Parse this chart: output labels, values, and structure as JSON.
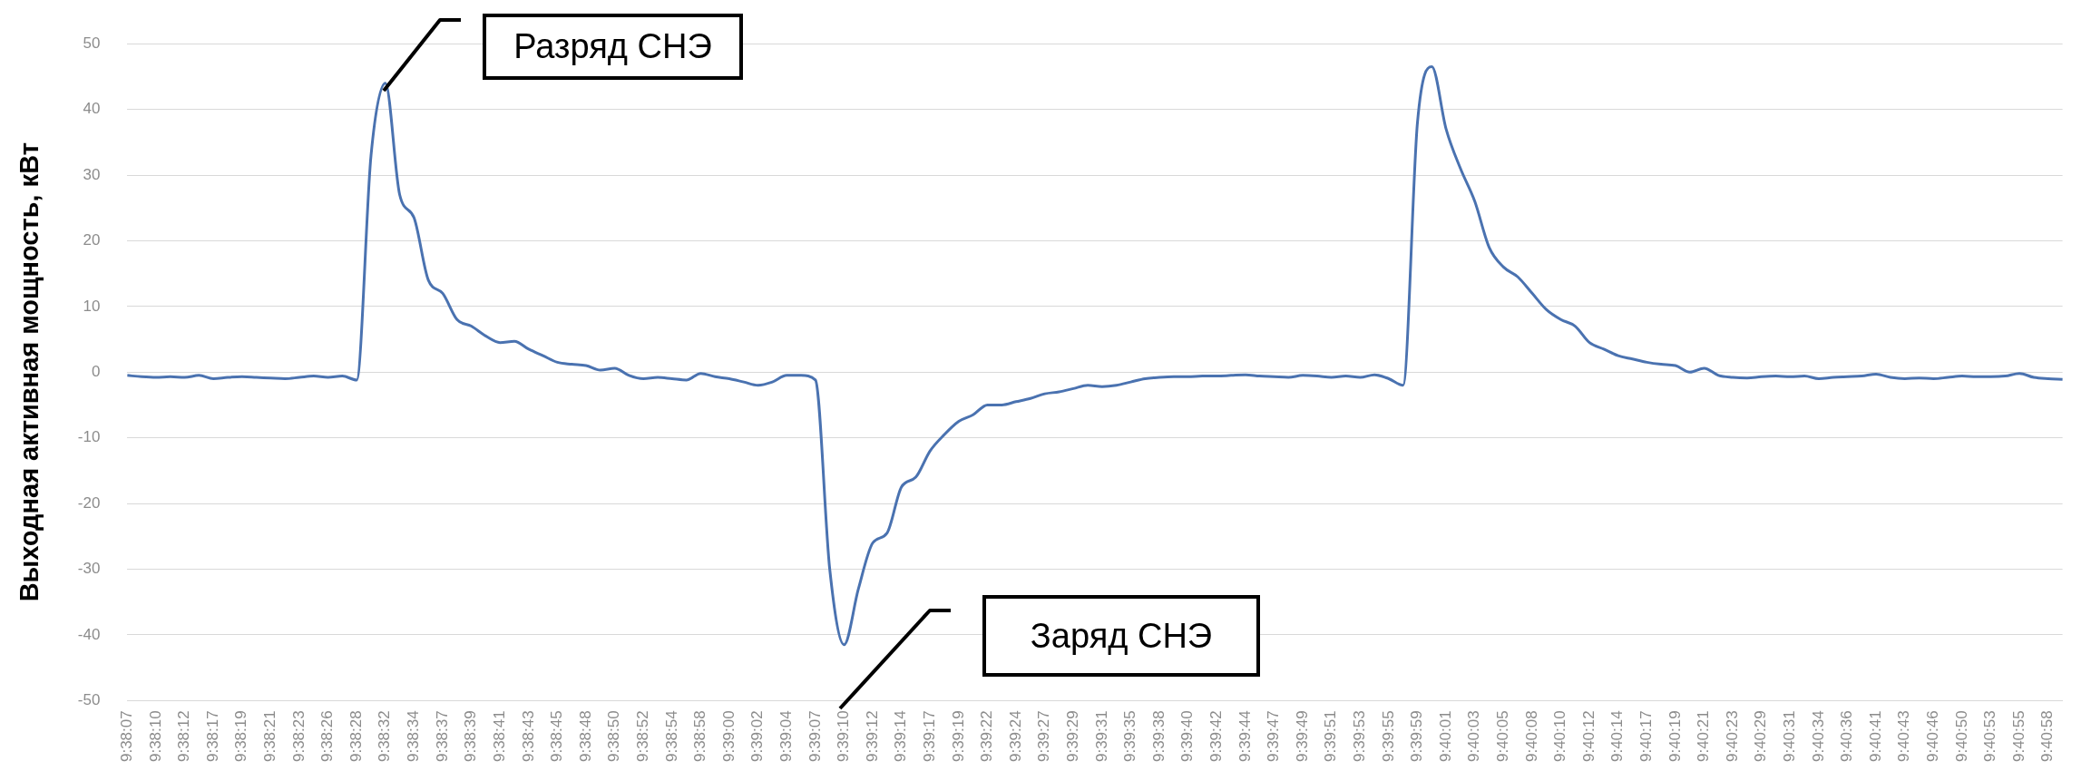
{
  "chart_data": {
    "type": "line",
    "ylabel": "Выходная активная мощность, кВт",
    "categories": [
      "9:38:07",
      null,
      "9:38:10",
      null,
      "9:38:12",
      null,
      "9:38:17",
      null,
      "9:38:19",
      null,
      "9:38:21",
      null,
      "9:38:23",
      null,
      "9:38:26",
      null,
      "9:38:28",
      null,
      "9:38:32",
      null,
      "9:38:34",
      null,
      "9:38:37",
      null,
      "9:38:39",
      null,
      "9:38:41",
      null,
      "9:38:43",
      null,
      "9:38:45",
      null,
      "9:38:48",
      null,
      "9:38:50",
      null,
      "9:38:52",
      null,
      "9:38:54",
      null,
      "9:38:58",
      null,
      "9:39:00",
      null,
      "9:39:02",
      null,
      "9:39:04",
      null,
      "9:39:07",
      null,
      "9:39:10",
      null,
      "9:39:12",
      null,
      "9:39:14",
      null,
      "9:39:17",
      null,
      "9:39:19",
      null,
      "9:39:22",
      null,
      "9:39:24",
      null,
      "9:39:27",
      null,
      "9:39:29",
      null,
      "9:39:31",
      null,
      "9:39:35",
      null,
      "9:39:38",
      null,
      "9:39:40",
      null,
      "9:39:42",
      null,
      "9:39:44",
      null,
      "9:39:47",
      null,
      "9:39:49",
      null,
      "9:39:51",
      null,
      "9:39:53",
      null,
      "9:39:55",
      null,
      "9:39:59",
      null,
      "9:40:01",
      null,
      "9:40:03",
      null,
      "9:40:05",
      null,
      "9:40:08",
      null,
      "9:40:10",
      null,
      "9:40:12",
      null,
      "9:40:14",
      null,
      "9:40:17",
      null,
      "9:40:19",
      null,
      "9:40:21",
      null,
      "9:40:23",
      null,
      "9:40:29",
      null,
      "9:40:31",
      null,
      "9:40:34",
      null,
      "9:40:36",
      null,
      "9:40:41",
      null,
      "9:40:43",
      null,
      "9:40:46",
      null,
      "9:40:50",
      null,
      "9:40:53",
      null,
      "9:40:55",
      null,
      "9:40:58",
      null
    ],
    "series": [
      {
        "color": "#4a72b0",
        "values": [
          -0.5,
          -0.7,
          -0.8,
          -0.7,
          -0.8,
          -0.5,
          -1,
          -0.8,
          -0.7,
          -0.8,
          -0.9,
          -1,
          -0.8,
          -0.6,
          -0.8,
          -0.6,
          -1.2,
          33,
          44,
          27,
          23.5,
          14,
          12,
          8,
          7,
          5.5,
          4.5,
          4.7,
          3.5,
          2.5,
          1.5,
          1.2,
          1,
          0.3,
          0.6,
          -0.5,
          -1,
          -0.8,
          -1,
          -1.2,
          -0.2,
          -0.7,
          -1,
          -1.5,
          -2,
          -1.5,
          -0.5,
          -0.5,
          -1.2,
          -30,
          -41.5,
          -33,
          -26,
          -24.5,
          -17.5,
          -16,
          -12,
          -9.5,
          -7.5,
          -6.5,
          -5,
          -5,
          -4.5,
          -4,
          -3.3,
          -3,
          -2.5,
          -2,
          -2.2,
          -2,
          -1.5,
          -1,
          -0.8,
          -0.7,
          -0.7,
          -0.6,
          -0.6,
          -0.5,
          -0.4,
          -0.6,
          -0.7,
          -0.8,
          -0.5,
          -0.6,
          -0.8,
          -0.6,
          -0.8,
          -0.4,
          -1,
          -2,
          38,
          46.5,
          37,
          31,
          26,
          19,
          16,
          14.5,
          12,
          9.5,
          8,
          7,
          4.5,
          3.5,
          2.5,
          2,
          1.5,
          1.2,
          1,
          0,
          0.6,
          -0.5,
          -0.8,
          -0.9,
          -0.7,
          -0.6,
          -0.7,
          -0.6,
          -1,
          -0.8,
          -0.7,
          -0.6,
          -0.3,
          -0.8,
          -1,
          -0.9,
          -1,
          -0.8,
          -0.6,
          -0.7,
          -0.7,
          -0.6,
          -0.2,
          -0.8,
          -1,
          -1.1
        ]
      }
    ],
    "ylim": [
      -50,
      50
    ],
    "yticks": [
      -50,
      -40,
      -30,
      -20,
      -10,
      0,
      10,
      20,
      30,
      40,
      50
    ],
    "grid": "y",
    "annotations": [
      "Разряд СНЭ",
      "Заряд СНЭ"
    ]
  }
}
